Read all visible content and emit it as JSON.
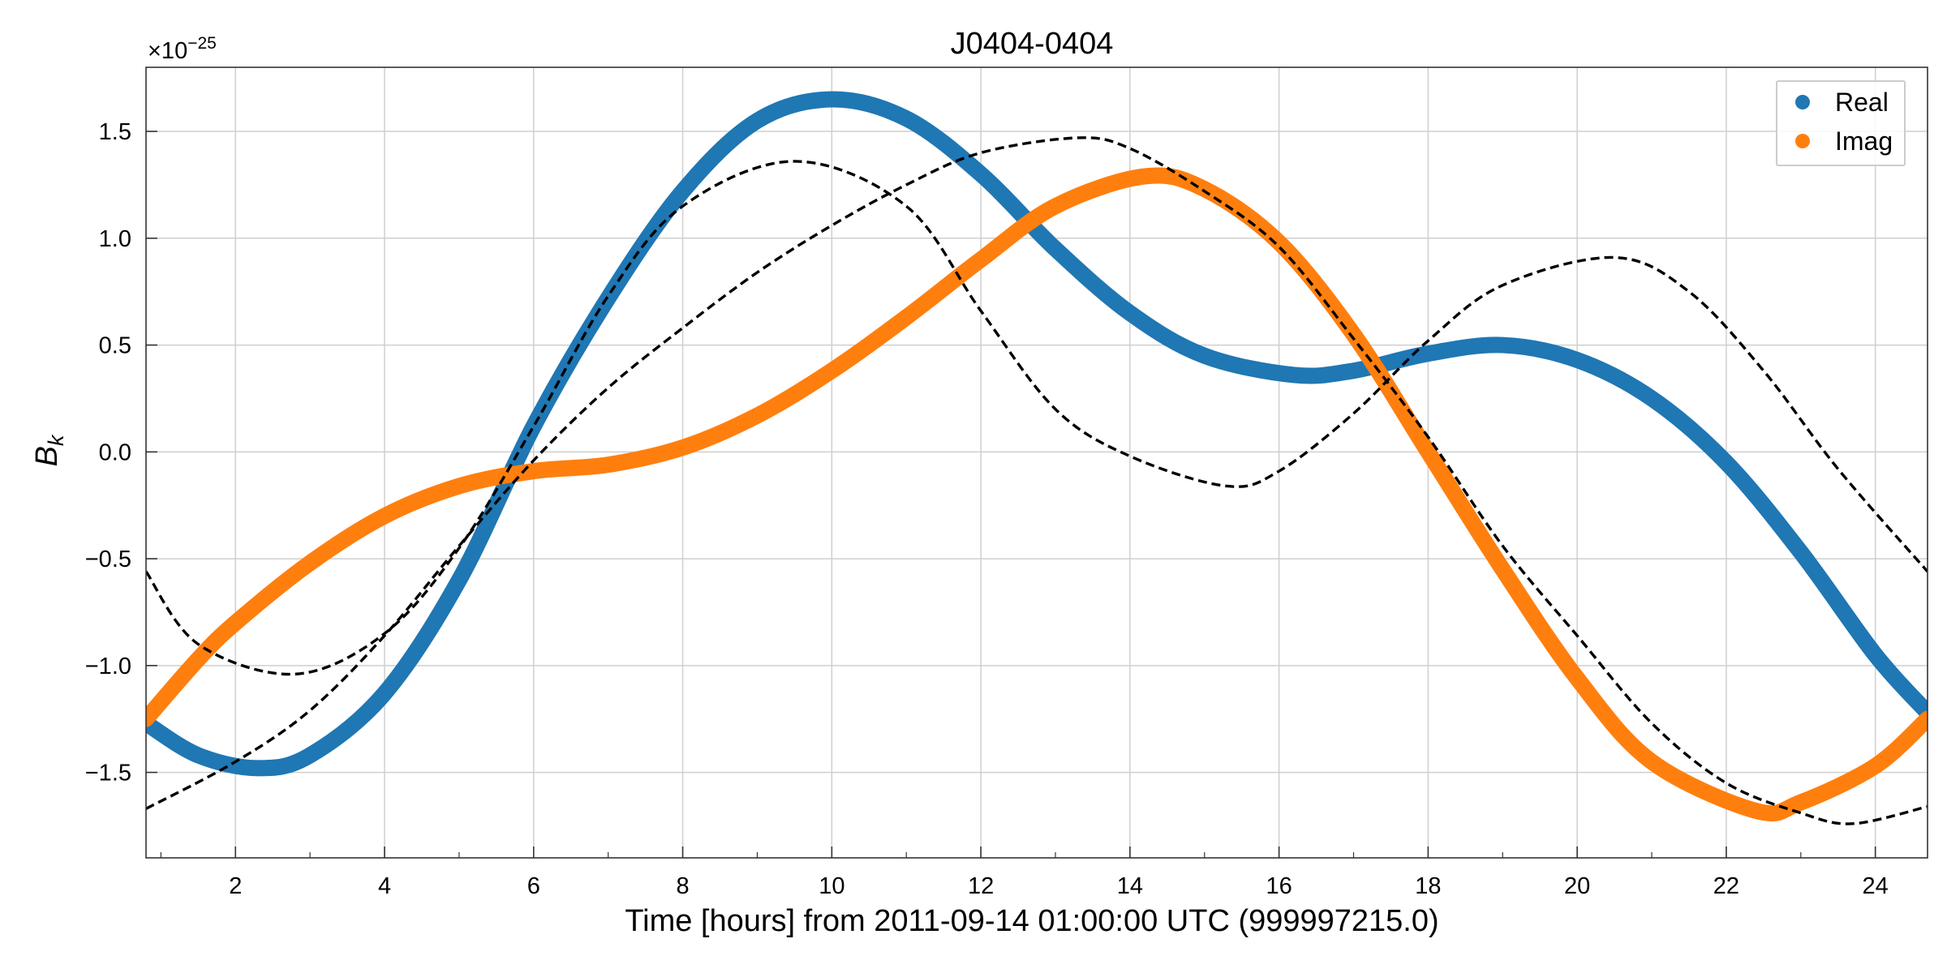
{
  "chart_data": {
    "type": "line",
    "title": "J0404-0404",
    "xlabel": "Time [hours] from 2011-09-14 01:00:00 UTC (999997215.0)",
    "ylabel_main": "B",
    "ylabel_sub": "k",
    "offset_label_base": "×10",
    "offset_label_exp": "−25",
    "xlim": [
      0.8,
      24.7
    ],
    "ylim": [
      -1.9,
      1.8
    ],
    "xticks": [
      2,
      4,
      6,
      8,
      10,
      12,
      14,
      16,
      18,
      20,
      22,
      24
    ],
    "xtick_labels": [
      "2",
      "4",
      "6",
      "8",
      "10",
      "12",
      "14",
      "16",
      "18",
      "20",
      "22",
      "24"
    ],
    "yticks": [
      -1.5,
      -1.0,
      -0.5,
      0.0,
      0.5,
      1.0,
      1.5
    ],
    "ytick_labels": [
      "−1.5",
      "−1.0",
      "−0.5",
      "0.0",
      "0.5",
      "1.0",
      "1.5"
    ],
    "grid": true,
    "legend_position": "top-right",
    "series": [
      {
        "name": "Real",
        "style": "thick",
        "color": "#1f77b4",
        "x": [
          0.8,
          1.5,
          2.3,
          3.0,
          4.0,
          5.0,
          6.0,
          7.0,
          8.0,
          9.0,
          10.0,
          11.0,
          12.0,
          13.0,
          14.0,
          15.0,
          16.2,
          17.0,
          18.0,
          19.0,
          20.0,
          21.0,
          22.0,
          23.0,
          24.0,
          24.7
        ],
        "y": [
          -1.27,
          -1.42,
          -1.48,
          -1.42,
          -1.13,
          -0.6,
          0.12,
          0.72,
          1.22,
          1.55,
          1.65,
          1.56,
          1.3,
          0.95,
          0.65,
          0.45,
          0.36,
          0.38,
          0.46,
          0.5,
          0.43,
          0.25,
          -0.05,
          -0.47,
          -0.95,
          -1.22
        ]
      },
      {
        "name": "Imag",
        "style": "thick",
        "color": "#ff7f0e",
        "x": [
          0.8,
          1.5,
          2.0,
          3.0,
          4.0,
          5.0,
          6.0,
          7.0,
          8.0,
          9.0,
          10.0,
          11.0,
          12.0,
          13.0,
          14.2,
          15.0,
          16.0,
          17.0,
          18.0,
          19.0,
          20.0,
          21.0,
          22.4,
          23.0,
          24.0,
          24.7
        ],
        "y": [
          -1.25,
          -0.97,
          -0.8,
          -0.52,
          -0.3,
          -0.16,
          -0.09,
          -0.06,
          0.02,
          0.17,
          0.38,
          0.63,
          0.9,
          1.15,
          1.29,
          1.23,
          0.98,
          0.55,
          0.0,
          -0.55,
          -1.06,
          -1.45,
          -1.68,
          -1.64,
          -1.47,
          -1.25
        ]
      },
      {
        "style": "dashed",
        "color": "#000000",
        "x": [
          0.8,
          1.5,
          2.8,
          4.0,
          5.0,
          6.0,
          7.0,
          8.0,
          9.5,
          11.0,
          12.0,
          13.0,
          14.0,
          15.3,
          16.0,
          17.0,
          18.0,
          19.0,
          20.5,
          21.5,
          22.5,
          23.5,
          24.7
        ],
        "y": [
          -0.56,
          -0.9,
          -1.04,
          -0.85,
          -0.45,
          0.12,
          0.73,
          1.15,
          1.36,
          1.15,
          0.66,
          0.2,
          -0.02,
          -0.16,
          -0.09,
          0.18,
          0.52,
          0.78,
          0.91,
          0.75,
          0.38,
          -0.08,
          -0.56
        ]
      },
      {
        "style": "dashed",
        "color": "#000000",
        "x": [
          0.8,
          2.0,
          3.0,
          4.0,
          5.0,
          6.0,
          7.0,
          8.0,
          9.0,
          10.0,
          11.0,
          12.0,
          13.3,
          14.0,
          15.0,
          16.0,
          17.0,
          18.0,
          19.0,
          20.0,
          21.0,
          22.0,
          23.0,
          23.7,
          24.7
        ],
        "y": [
          -1.67,
          -1.45,
          -1.21,
          -0.86,
          -0.44,
          -0.04,
          0.3,
          0.58,
          0.84,
          1.06,
          1.25,
          1.4,
          1.47,
          1.42,
          1.22,
          0.96,
          0.53,
          0.07,
          -0.44,
          -0.86,
          -1.27,
          -1.55,
          -1.69,
          -1.74,
          -1.66
        ]
      }
    ]
  }
}
